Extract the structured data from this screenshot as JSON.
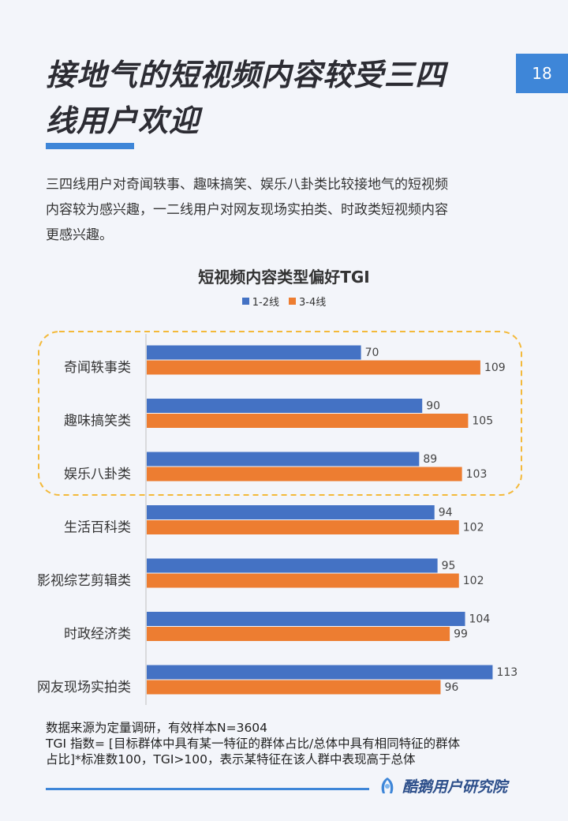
{
  "page_number": "18",
  "title_lines": [
    "接地气的短视频内容较受三四",
    "线用户欢迎"
  ],
  "intro_lines": [
    "三四线用户对奇闻轶事、趣味搞笑、娱乐八卦类比较接地气的短视频",
    "内容较为感兴趣，一二线用户对网友现场实拍类、时政类短视频内容",
    "更感兴趣。"
  ],
  "colors": {
    "accent": "#3e86d8",
    "series_1": "#4472c4",
    "series_2": "#ed7d31",
    "highlight_border": "#f3b93a"
  },
  "chart_data": {
    "type": "bar",
    "orientation": "horizontal",
    "title": "短视频内容类型偏好TGI",
    "categories": [
      "奇闻轶事类",
      "趣味搞笑类",
      "娱乐八卦类",
      "生活百科类",
      "影视综艺剪辑类",
      "时政经济类",
      "网友现场实拍类"
    ],
    "series": [
      {
        "name": "1-2线",
        "values": [
          70,
          90,
          89,
          94,
          95,
          104,
          113
        ]
      },
      {
        "name": "3-4线",
        "values": [
          109,
          105,
          103,
          102,
          102,
          99,
          96
        ]
      }
    ],
    "xlim": [
      0,
      120
    ],
    "highlighted_categories": [
      "奇闻轶事类",
      "趣味搞笑类",
      "娱乐八卦类"
    ],
    "legend_position": "top",
    "grid": false
  },
  "footnote_lines": [
    "数据来源为定量调研，有效样本N=3604",
    "TGI 指数= [目标群体中具有某一特征的群体占比/总体中具有相同特征的群体",
    "占比]*标准数100，TGI>100，表示某特征在该人群中表现高于总体"
  ],
  "brand": {
    "name": "酷鹅用户研究院",
    "logo_icon": "penguin-logo-icon"
  }
}
